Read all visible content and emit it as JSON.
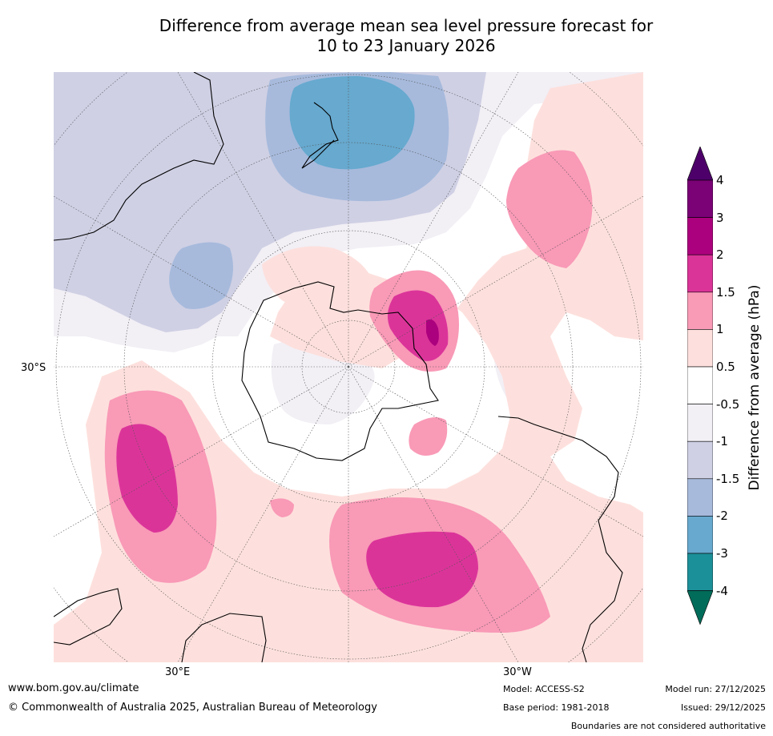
{
  "title": {
    "line1": "Difference from average mean sea level pressure forecast for",
    "line2": "10 to 23 January 2026"
  },
  "map": {
    "projection": "south-polar-stereographic",
    "labels": {
      "lat_30s": "30°S",
      "lon_30e": "30°E",
      "lon_30w": "30°W"
    },
    "layers": [
      {
        "name": "positive-anomaly",
        "fill": "#fde0dd",
        "range": "0.5 to 1"
      },
      {
        "name": "positive-anomaly",
        "fill": "#f99ab7",
        "range": "1 to 1.5"
      },
      {
        "name": "positive-anomaly",
        "fill": "#db3499",
        "range": "1.5 to 2"
      },
      {
        "name": "positive-anomaly",
        "fill": "#ac017e",
        "range": "2 to 3"
      },
      {
        "name": "negative-anomaly",
        "fill": "#f2eff5",
        "range": "-1 to -0.5"
      },
      {
        "name": "negative-anomaly",
        "fill": "#cfd0e4",
        "range": "-1.5 to -1"
      },
      {
        "name": "negative-anomaly",
        "fill": "#a7badc",
        "range": "-2 to -1.5"
      },
      {
        "name": "negative-anomaly",
        "fill": "#67a9cf",
        "range": "-3 to -2"
      }
    ]
  },
  "colorbar": {
    "title": "Difference from average (hPa)",
    "ticks": [
      "4",
      "3",
      "2",
      "1.5",
      "1",
      "0.5",
      "-0.5",
      "-1",
      "-1.5",
      "-2",
      "-3",
      "-4"
    ],
    "colors": [
      "#4d0069",
      "#7a0176",
      "#ac017e",
      "#db3499",
      "#f99ab7",
      "#fde0dd",
      "#ffffff",
      "#f2eff5",
      "#cfd0e4",
      "#a7badc",
      "#67a9cf",
      "#1c9099",
      "#016c59"
    ]
  },
  "footer": {
    "url": "www.bom.gov.au/climate",
    "copyright": "© Commonwealth of Australia 2025, Australian Bureau of Meteorology",
    "model": "Model: ACCESS-S2",
    "base_period": "Base period: 1981-2018",
    "model_run": "Model run: 27/12/2025",
    "issued": "Issued: 29/12/2025",
    "disclaimer": "Boundaries are not considered authoritative"
  }
}
